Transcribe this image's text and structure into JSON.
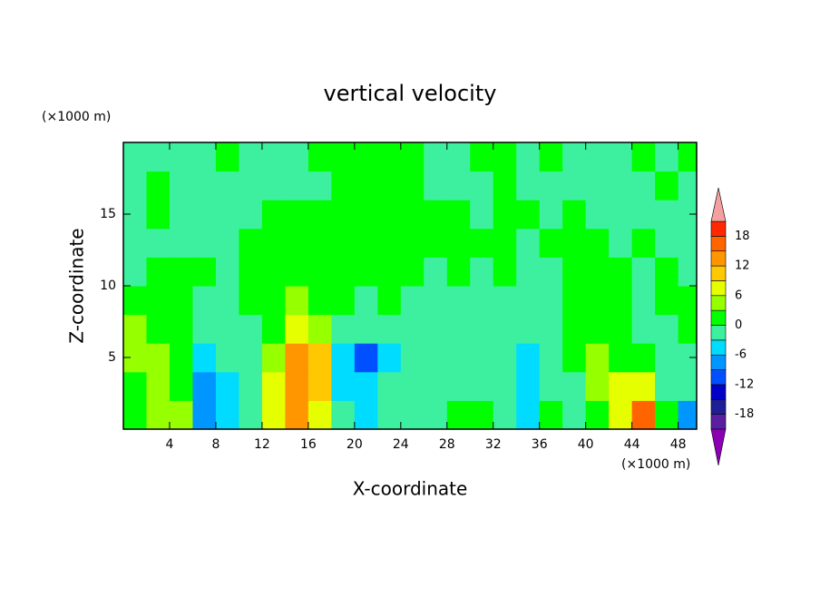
{
  "chart_data": {
    "type": "contour",
    "title": "vertical velocity",
    "x_label": "X-coordinate",
    "y_label": "Z-coordinate",
    "x_unit": "(×1000 m)",
    "y_unit": "(×1000 m)",
    "xlim": [
      0,
      49.6
    ],
    "ylim": [
      0,
      20
    ],
    "xticks": [
      4,
      8,
      12,
      16,
      20,
      24,
      28,
      32,
      36,
      40,
      44,
      48
    ],
    "yticks": [
      5,
      10,
      15
    ],
    "x": [
      1,
      3,
      5,
      7,
      9,
      11,
      13,
      15,
      17,
      19,
      21,
      23,
      25,
      27,
      29,
      31,
      33,
      35,
      37,
      39,
      41,
      43,
      45,
      47,
      49
    ],
    "y": [
      1,
      3,
      5,
      7,
      9,
      11,
      13,
      15,
      17,
      19
    ],
    "z": [
      [
        0,
        4,
        3,
        -8,
        -5,
        -2,
        6,
        12,
        8,
        -3,
        -4,
        -1,
        -1,
        -2,
        0,
        1,
        -2,
        -6,
        0,
        -2,
        1,
        6,
        15,
        0,
        -8
      ],
      [
        2,
        4,
        1,
        -8,
        -5,
        -2,
        6,
        14,
        10,
        -6,
        -6,
        -3,
        -2,
        -1,
        -1,
        -1,
        -2,
        -4,
        -3,
        -1,
        3,
        6,
        6,
        -3,
        -2
      ],
      [
        3,
        4,
        2,
        -4,
        -3,
        -2,
        4,
        12,
        9,
        -6,
        -10,
        -4,
        -2,
        -1,
        -2,
        -2,
        -3,
        -6,
        -2,
        0,
        4,
        2,
        0,
        -2,
        -1
      ],
      [
        3,
        2,
        0,
        -2,
        -3,
        -1,
        2,
        8,
        5,
        -2,
        -3,
        -1,
        -2,
        -1,
        -2,
        -3,
        -2,
        -2,
        -1,
        1,
        2,
        0,
        -1,
        -1,
        0
      ],
      [
        2,
        0,
        0,
        -1,
        -2,
        0,
        1,
        3,
        2,
        0,
        -1,
        0,
        -1,
        -1,
        -1,
        -2,
        -2,
        -1,
        -1,
        0,
        1,
        0,
        -1,
        0,
        1
      ],
      [
        -1,
        0,
        1,
        0,
        -1,
        0,
        1,
        0,
        1,
        1,
        0,
        1,
        0,
        -1,
        0,
        -1,
        0,
        -1,
        -1,
        1,
        0,
        0,
        -1,
        0,
        -1
      ],
      [
        -1,
        -1,
        -2,
        -1,
        -1,
        0,
        1,
        1,
        1,
        1,
        1,
        1,
        1,
        0,
        1,
        0,
        0,
        -1,
        0,
        1,
        0,
        -1,
        0,
        -1,
        -1
      ],
      [
        -1,
        1,
        -2,
        -3,
        -1,
        -1,
        0,
        1,
        1,
        1,
        1,
        1,
        1,
        1,
        1,
        -1,
        1,
        0,
        -1,
        0,
        -1,
        -1,
        -1,
        -1,
        -1
      ],
      [
        -1,
        1,
        -1,
        -1,
        -1,
        -1,
        -1,
        -1,
        -1,
        1,
        1,
        1,
        1,
        -1,
        -1,
        -1,
        1,
        -1,
        -1,
        -1,
        -1,
        -1,
        -1,
        1,
        -1
      ],
      [
        -1,
        -1,
        -1,
        -1,
        1,
        -1,
        -1,
        -1,
        1,
        1,
        1,
        1,
        1,
        -1,
        -1,
        1,
        1,
        -1,
        1,
        -1,
        -1,
        -1,
        1,
        -1,
        1
      ]
    ],
    "levels": [
      -21,
      -18,
      -15,
      -12,
      -9,
      -6,
      -3,
      0,
      3,
      6,
      9,
      12,
      15,
      18,
      21
    ],
    "colorbar_ticks": [
      -18,
      -12,
      -6,
      0,
      6,
      12,
      18
    ],
    "colors": [
      "#8c00b4",
      "#5a1ea0",
      "#1e1e96",
      "#0000c8",
      "#0050ff",
      "#0096ff",
      "#00dcff",
      "#3cf0a0",
      "#00ff00",
      "#96ff00",
      "#e6ff00",
      "#ffc800",
      "#ff9600",
      "#ff6400",
      "#ff2800",
      "#f4a0a0"
    ]
  }
}
